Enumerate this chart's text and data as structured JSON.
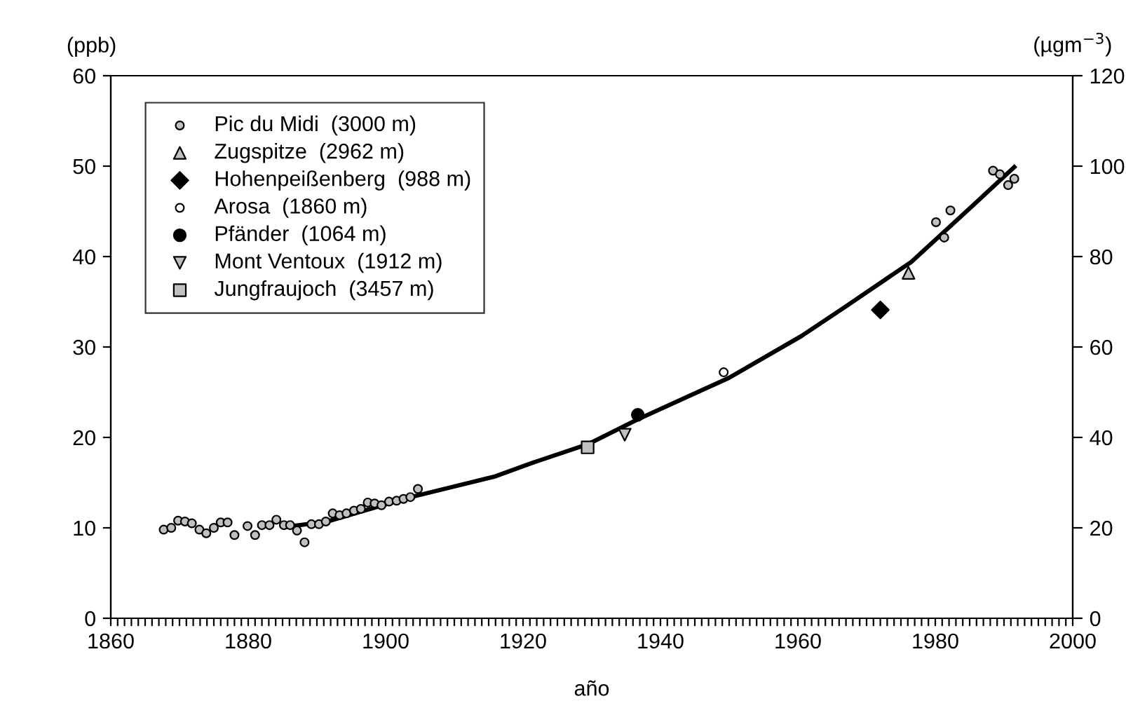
{
  "chart_data": {
    "type": "scatter",
    "xlabel": "año",
    "ylabel": "(ppb)",
    "y2label": "(µgm$^{−3}$)",
    "xlim": [
      1860,
      2000
    ],
    "xticks": [
      1860,
      {
        "value": 1861,
        "label": null
      },
      {
        "value": 1862,
        "label": null
      },
      {
        "value": 1863,
        "label": null
      },
      {
        "value": 1864,
        "label": null
      },
      {
        "value": 1865,
        "label": null
      },
      {
        "value": 1866,
        "label": null
      },
      {
        "value": 1867,
        "label": null
      },
      {
        "value": 1868,
        "label": null
      },
      {
        "value": 1869,
        "label": null
      },
      {
        "value": 1870,
        "label": null
      },
      {
        "value": 1871,
        "label": null
      },
      {
        "value": 1872,
        "label": null
      },
      {
        "value": 1873,
        "label": null
      },
      {
        "value": 1874,
        "label": null
      },
      {
        "value": 1875,
        "label": null
      },
      {
        "value": 1876,
        "label": null
      },
      {
        "value": 1877,
        "label": null
      },
      {
        "value": 1878,
        "label": null
      },
      {
        "value": 1879,
        "label": null
      },
      1880,
      {
        "value": 1881,
        "label": null
      },
      {
        "value": 1882,
        "label": null
      },
      {
        "value": 1883,
        "label": null
      },
      {
        "value": 1884,
        "label": null
      },
      {
        "value": 1885,
        "label": null
      },
      {
        "value": 1886,
        "label": null
      },
      {
        "value": 1887,
        "label": null
      },
      {
        "value": 1888,
        "label": null
      },
      {
        "value": 1889,
        "label": null
      },
      {
        "value": 1890,
        "label": null
      },
      {
        "value": 1891,
        "label": null
      },
      {
        "value": 1892,
        "label": null
      },
      {
        "value": 1893,
        "label": null
      },
      {
        "value": 1894,
        "label": null
      },
      {
        "value": 1895,
        "label": null
      },
      {
        "value": 1896,
        "label": null
      },
      {
        "value": 1897,
        "label": null
      },
      {
        "value": 1898,
        "label": null
      },
      {
        "value": 1899,
        "label": null
      },
      1900,
      {
        "value": 1901,
        "label": null
      },
      {
        "value": 1902,
        "label": null
      },
      {
        "value": 1903,
        "label": null
      },
      {
        "value": 1904,
        "label": null
      },
      {
        "value": 1905,
        "label": null
      },
      {
        "value": 1906,
        "label": null
      },
      {
        "value": 1907,
        "label": null
      },
      {
        "value": 1908,
        "label": null
      },
      {
        "value": 1909,
        "label": null
      },
      {
        "value": 1910,
        "label": null
      },
      {
        "value": 1911,
        "label": null
      },
      {
        "value": 1912,
        "label": null
      },
      {
        "value": 1913,
        "label": null
      },
      {
        "value": 1914,
        "label": null
      },
      {
        "value": 1915,
        "label": null
      },
      {
        "value": 1916,
        "label": null
      },
      {
        "value": 1917,
        "label": null
      },
      {
        "value": 1918,
        "label": null
      },
      {
        "value": 1919,
        "label": null
      },
      1920,
      {
        "value": 1921,
        "label": null
      },
      {
        "value": 1922,
        "label": null
      },
      {
        "value": 1923,
        "label": null
      },
      {
        "value": 1924,
        "label": null
      },
      {
        "value": 1925,
        "label": null
      },
      {
        "value": 1926,
        "label": null
      },
      {
        "value": 1927,
        "label": null
      },
      {
        "value": 1928,
        "label": null
      },
      {
        "value": 1929,
        "label": null
      },
      {
        "value": 1930,
        "label": null
      },
      {
        "value": 1931,
        "label": null
      },
      {
        "value": 1932,
        "label": null
      },
      {
        "value": 1933,
        "label": null
      },
      {
        "value": 1934,
        "label": null
      },
      {
        "value": 1935,
        "label": null
      },
      {
        "value": 1936,
        "label": null
      },
      {
        "value": 1937,
        "label": null
      },
      {
        "value": 1938,
        "label": null
      },
      {
        "value": 1939,
        "label": null
      },
      1940,
      {
        "value": 1941,
        "label": null
      },
      {
        "value": 1942,
        "label": null
      },
      {
        "value": 1943,
        "label": null
      },
      {
        "value": 1944,
        "label": null
      },
      {
        "value": 1945,
        "label": null
      },
      {
        "value": 1946,
        "label": null
      },
      {
        "value": 1947,
        "label": null
      },
      {
        "value": 1948,
        "label": null
      },
      {
        "value": 1949,
        "label": null
      },
      {
        "value": 1950,
        "label": null
      },
      {
        "value": 1951,
        "label": null
      },
      {
        "value": 1952,
        "label": null
      },
      {
        "value": 1953,
        "label": null
      },
      {
        "value": 1954,
        "label": null
      },
      {
        "value": 1955,
        "label": null
      },
      {
        "value": 1956,
        "label": null
      },
      {
        "value": 1957,
        "label": null
      },
      {
        "value": 1958,
        "label": null
      },
      {
        "value": 1959,
        "label": null
      },
      1960,
      {
        "value": 1961,
        "label": null
      },
      {
        "value": 1962,
        "label": null
      },
      {
        "value": 1963,
        "label": null
      },
      {
        "value": 1964,
        "label": null
      },
      {
        "value": 1965,
        "label": null
      },
      {
        "value": 1966,
        "label": null
      },
      {
        "value": 1967,
        "label": null
      },
      {
        "value": 1968,
        "label": null
      },
      {
        "value": 1969,
        "label": null
      },
      {
        "value": 1970,
        "label": null
      },
      {
        "value": 1971,
        "label": null
      },
      {
        "value": 1972,
        "label": null
      },
      {
        "value": 1973,
        "label": null
      },
      {
        "value": 1974,
        "label": null
      },
      {
        "value": 1975,
        "label": null
      },
      {
        "value": 1976,
        "label": null
      },
      {
        "value": 1977,
        "label": null
      },
      {
        "value": 1978,
        "label": null
      },
      {
        "value": 1979,
        "label": null
      },
      1980,
      {
        "value": 1981,
        "label": null
      },
      {
        "value": 1982,
        "label": null
      },
      {
        "value": 1983,
        "label": null
      },
      {
        "value": 1984,
        "label": null
      },
      {
        "value": 1985,
        "label": null
      },
      {
        "value": 1986,
        "label": null
      },
      {
        "value": 1987,
        "label": null
      },
      {
        "value": 1988,
        "label": null
      },
      {
        "value": 1989,
        "label": null
      },
      {
        "value": 1990,
        "label": null
      },
      {
        "value": 1991,
        "label": null
      },
      {
        "value": 1992,
        "label": null
      },
      {
        "value": 1993,
        "label": null
      },
      {
        "value": 1994,
        "label": null
      },
      {
        "value": 1995,
        "label": null
      },
      {
        "value": 1996,
        "label": null
      },
      {
        "value": 1997,
        "label": null
      },
      {
        "value": 1998,
        "label": null
      },
      {
        "value": 1999,
        "label": null
      },
      2000
    ],
    "ylim": [
      0,
      60
    ],
    "yticks": [
      0,
      10,
      20,
      30,
      40,
      50,
      60
    ],
    "y2lim": [
      0,
      120
    ],
    "y2ticks": [
      0,
      20,
      40,
      60,
      80,
      100,
      120
    ],
    "grid": false,
    "legend": "top left",
    "series": [
      {
        "name": "Pic du Midi  (3000 m)",
        "color": "#c0c0c0",
        "marker": "circle",
        "x": [
          1867.7,
          1868.8,
          1869.8,
          1870.8,
          1871.8,
          1872.9,
          1873.9,
          1875.0,
          1876.0,
          1877.0,
          1878.0,
          1879.9,
          1881.0,
          1882.0,
          1883.1,
          1884.1,
          1885.2,
          1886.1,
          1887.1,
          1888.2,
          1889.2,
          1890.3,
          1891.3,
          1892.3,
          1893.3,
          1894.3,
          1895.4,
          1896.4,
          1897.4,
          1898.4,
          1899.4,
          1900.5,
          1901.6,
          1902.6,
          1903.6,
          1904.7,
          1980.1,
          1981.3,
          1982.2,
          1988.4,
          1989.4,
          1990.6,
          1991.5
        ],
        "values": [
          9.8,
          10.0,
          10.8,
          10.7,
          10.5,
          9.8,
          9.4,
          10.0,
          10.6,
          10.6,
          9.2,
          10.2,
          9.2,
          10.3,
          10.3,
          10.9,
          10.3,
          10.3,
          9.7,
          8.4,
          10.4,
          10.4,
          10.7,
          11.6,
          11.4,
          11.6,
          11.9,
          12.1,
          12.8,
          12.7,
          12.5,
          12.9,
          13.0,
          13.2,
          13.4,
          14.3,
          43.8,
          42.1,
          45.1,
          49.5,
          49.1,
          47.9,
          48.6
        ]
      },
      {
        "name": "Zugspitze  (2962 m)",
        "color": "#c0c0c0",
        "marker": "triangle",
        "x": [
          1976.1
        ],
        "values": [
          38.2
        ]
      },
      {
        "name": "Hohenpeißenberg  (988 m)",
        "color": "#000000",
        "marker": "diamond",
        "x": [
          1972.0
        ],
        "values": [
          34.1
        ]
      },
      {
        "name": "Arosa  (1860 m)",
        "color": "#ffffff",
        "x": [
          1949.2
        ],
        "values": [
          27.2
        ]
      },
      {
        "name": "Pfänder  (1064 m)",
        "color": "#000000",
        "marker": "circle",
        "x": [
          1936.7
        ],
        "values": [
          22.5
        ]
      },
      {
        "name": "Mont Ventoux  (1912 m)",
        "color": "#c0c0c0",
        "marker": "triangle_down",
        "x": [
          1934.8
        ],
        "values": [
          20.3
        ]
      },
      {
        "name": "Jungfraujoch  (3457 m)",
        "color": "#c0c0c0",
        "marker": "square",
        "x": [
          1929.4
        ],
        "values": [
          18.9
        ]
      },
      {
        "type": "line",
        "color": "#000000",
        "marker": "none",
        "x": [
          1885.4,
          1891.5,
          1903.7,
          1916.0,
          1921.4,
          1929.6,
          1936.7,
          1950.0,
          1960.5,
          1967.0,
          1976.5,
          1985.4,
          1991.5
        ],
        "values": [
          10.1,
          10.7,
          13.4,
          15.7,
          17.2,
          19.3,
          22.0,
          26.6,
          31.2,
          34.5,
          39.4,
          45.6,
          49.9
        ]
      }
    ]
  }
}
